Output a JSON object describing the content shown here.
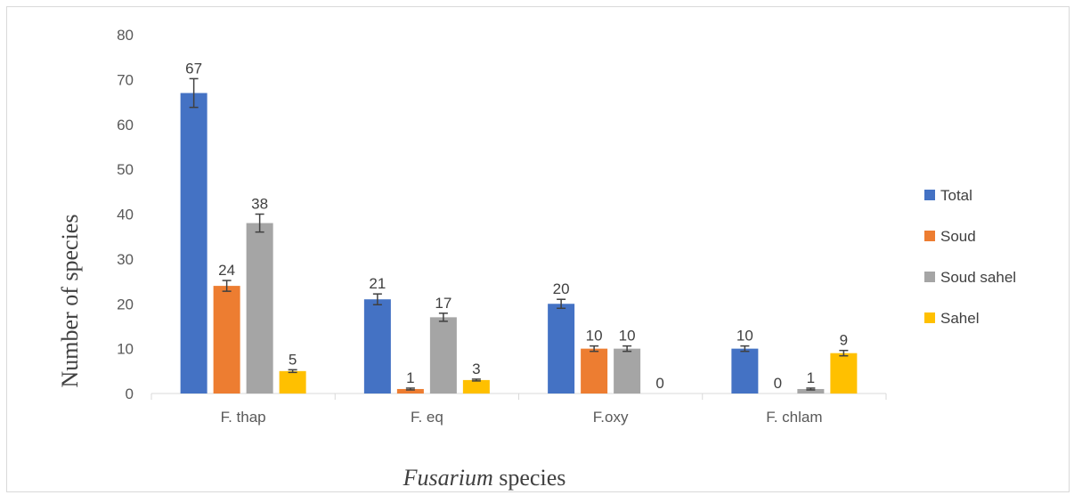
{
  "chart_data": {
    "type": "bar",
    "title": "",
    "xlabel_italic": "Fusarium",
    "xlabel_rest": " species",
    "ylabel": "Number of species",
    "ylim": [
      0,
      80
    ],
    "yticks": [
      0,
      10,
      20,
      30,
      40,
      50,
      60,
      70,
      80
    ],
    "categories": [
      "F. thap",
      "F. eq",
      "F.oxy",
      "F. chlam"
    ],
    "series": [
      {
        "name": "Total",
        "color": "#4472C4",
        "values": [
          67,
          21,
          20,
          10
        ],
        "errors": [
          3.2,
          1.2,
          1.0,
          0.6
        ]
      },
      {
        "name": "Soud",
        "color": "#ED7D31",
        "values": [
          24,
          1,
          10,
          0
        ],
        "errors": [
          1.2,
          0.2,
          0.6,
          0
        ]
      },
      {
        "name": "Soud sahel",
        "color": "#A5A5A5",
        "values": [
          38,
          17,
          10,
          1
        ],
        "errors": [
          2.0,
          0.9,
          0.6,
          0.2
        ]
      },
      {
        "name": "Sahel",
        "color": "#FFC000",
        "values": [
          5,
          3,
          0,
          9
        ],
        "errors": [
          0.3,
          0.2,
          0,
          0.6
        ]
      }
    ],
    "grid": false,
    "legend_position": "right",
    "data_labels": true,
    "error_bars": true
  }
}
